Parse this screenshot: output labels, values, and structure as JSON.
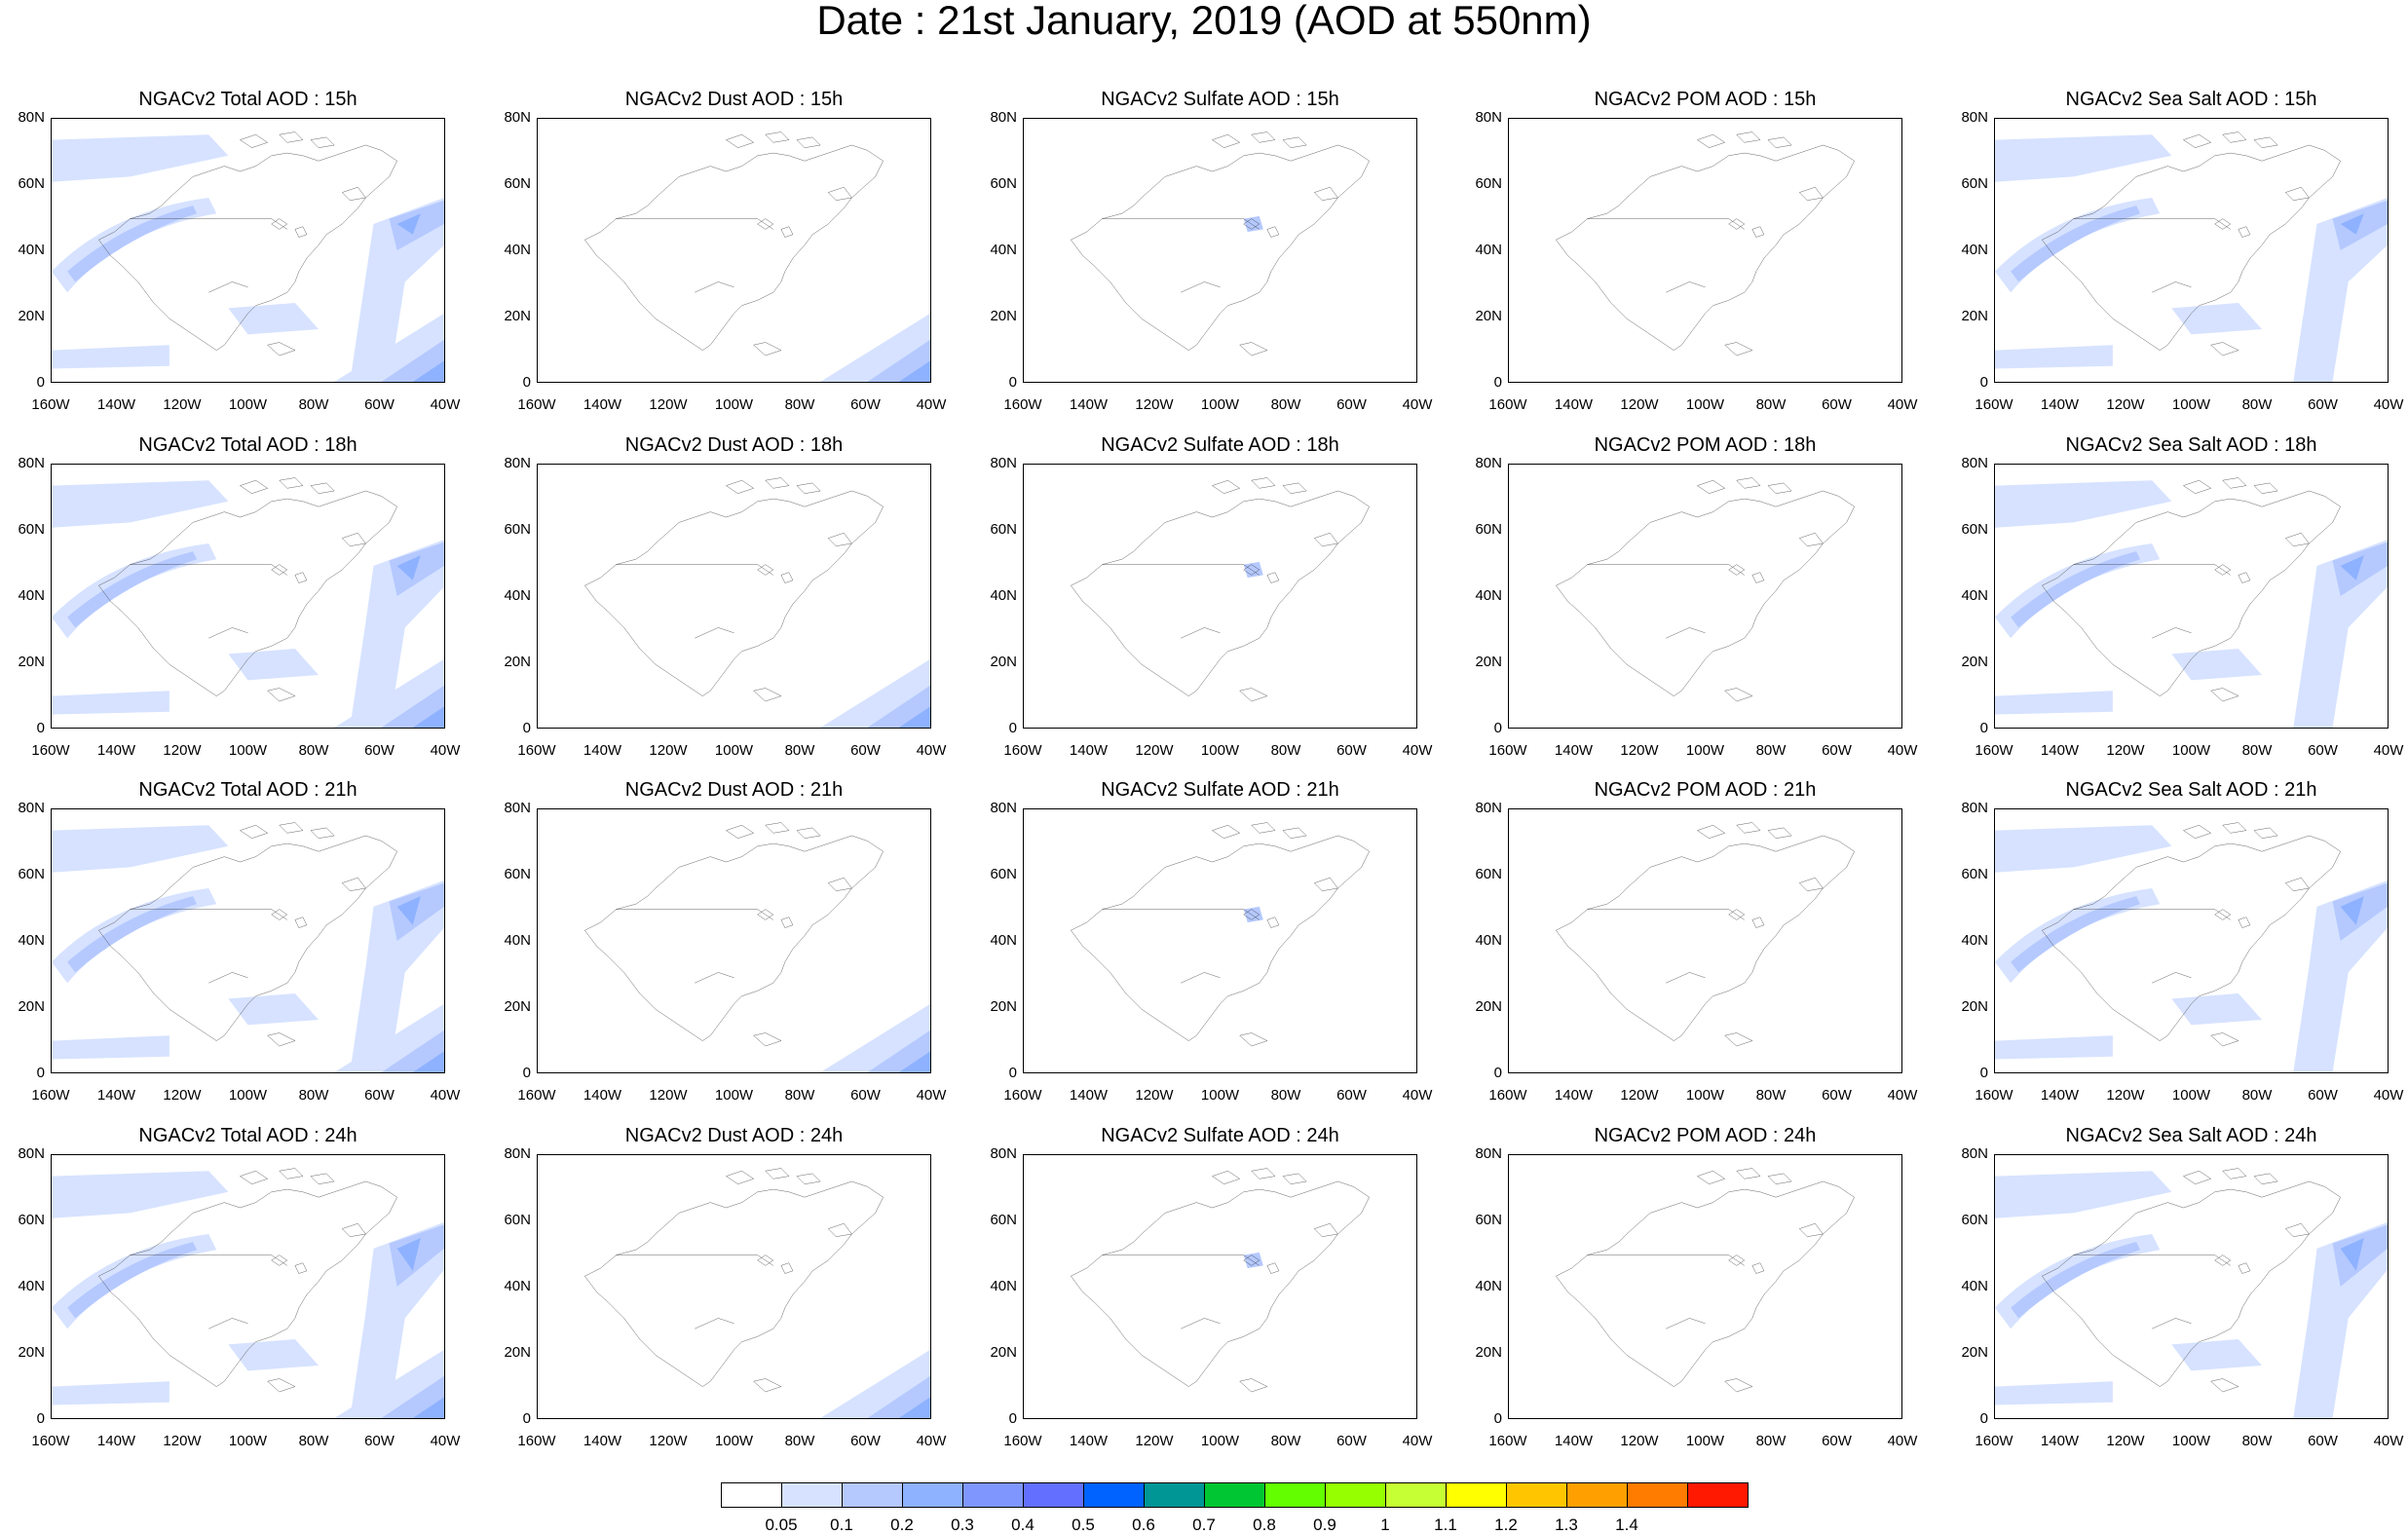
{
  "title": "Date : 21st January, 2019 (AOD at 550nm)",
  "lat_ticks": [
    "80N",
    "60N",
    "40N",
    "20N",
    "0"
  ],
  "lon_ticks": [
    "160W",
    "140W",
    "120W",
    "100W",
    "80W",
    "60W",
    "40W"
  ],
  "rows": [
    {
      "hour": "15h",
      "titles": [
        "NGACv2 Total AOD : 15h",
        "NGACv2 Dust AOD : 15h",
        "NGACv2 Sulfate AOD : 15h",
        "NGACv2 POM AOD : 15h",
        "NGACv2 Sea Salt AOD : 15h"
      ]
    },
    {
      "hour": "18h",
      "titles": [
        "NGACv2 Total AOD : 18h",
        "NGACv2 Dust AOD : 18h",
        "NGACv2 Sulfate AOD : 18h",
        "NGACv2 POM AOD : 18h",
        "NGACv2 Sea Salt AOD : 18h"
      ]
    },
    {
      "hour": "21h",
      "titles": [
        "NGACv2 Total AOD : 21h",
        "NGACv2 Dust AOD : 21h",
        "NGACv2 Sulfate AOD : 21h",
        "NGACv2 POM AOD : 21h",
        "NGACv2 Sea Salt AOD : 21h"
      ]
    },
    {
      "hour": "24h",
      "titles": [
        "NGACv2 Total AOD : 24h",
        "NGACv2 Dust AOD : 24h",
        "NGACv2 Sulfate AOD : 24h",
        "NGACv2 POM AOD : 24h",
        "NGACv2 Sea Salt  AOD : 24h"
      ]
    }
  ],
  "columns": [
    "total",
    "dust",
    "sulfate",
    "pom",
    "seasalt"
  ],
  "colorbar": {
    "labels": [
      "0.05",
      "0.1",
      "0.2",
      "0.3",
      "0.4",
      "0.5",
      "0.6",
      "0.7",
      "0.8",
      "0.9",
      "1",
      "1.1",
      "1.2",
      "1.3",
      "1.4"
    ],
    "colors": [
      "#ffffff",
      "#d6e2ff",
      "#b5c9ff",
      "#8eb2ff",
      "#7f96ff",
      "#6370ff",
      "#0063ff",
      "#009696",
      "#00c633",
      "#63ff00",
      "#96ff00",
      "#c6ff33",
      "#ffff00",
      "#ffc600",
      "#ffa000",
      "#ff7c00",
      "#ff1900"
    ]
  }
}
